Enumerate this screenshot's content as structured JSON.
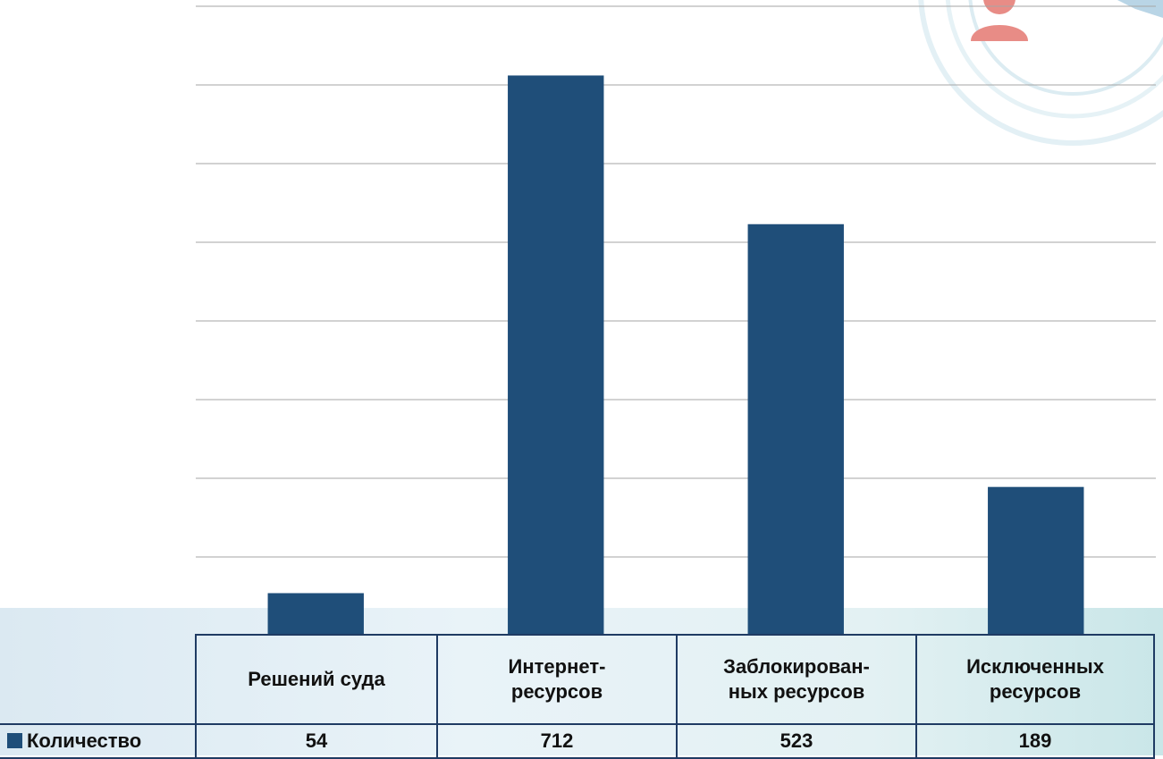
{
  "colors": {
    "bar": "#1f4e79",
    "gridline": "#a6a6a6",
    "table_border": "#1f3b63"
  },
  "decor": {
    "icon": "person-avatar-icon"
  },
  "chart_data": {
    "type": "bar",
    "categories": [
      "Решений суда",
      "Интернет-ресурсов",
      "Заблокирован-ных ресурсов",
      "Исключенных ресурсов"
    ],
    "categories_display": [
      [
        "Решений суда"
      ],
      [
        "Интернет-",
        "ресурсов"
      ],
      [
        "Заблокирован-",
        "ных ресурсов"
      ],
      [
        "Исключенных",
        "ресурсов"
      ]
    ],
    "series": [
      {
        "name": "Количество",
        "values": [
          54,
          712,
          523,
          189
        ]
      }
    ],
    "ylim": [
      0,
      800
    ],
    "ytick_step": 100,
    "grid": true,
    "legend": "data-table",
    "title": "",
    "xlabel": "",
    "ylabel": ""
  }
}
